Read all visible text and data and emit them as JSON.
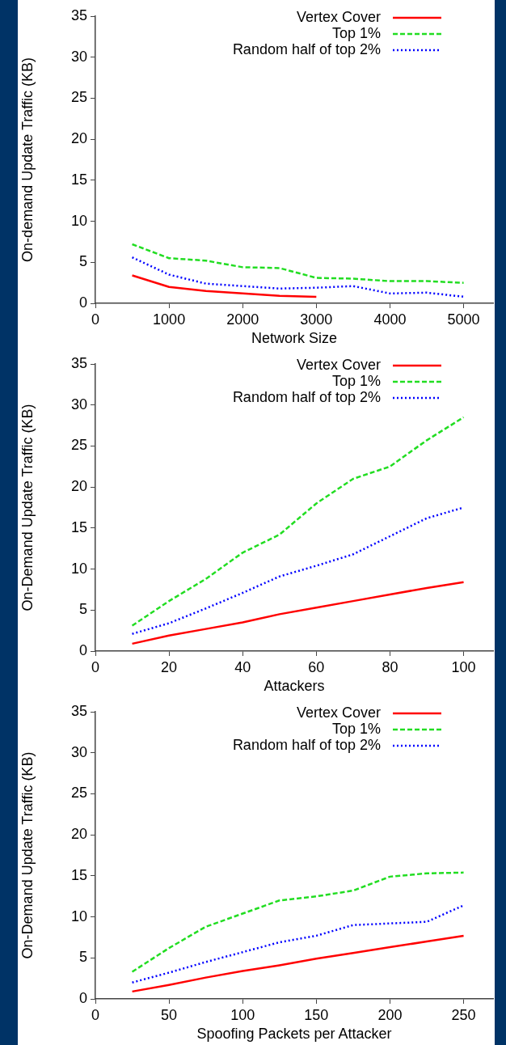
{
  "chart_data": [
    {
      "type": "line",
      "xlabel": "Network Size",
      "ylabel": "On-demand Update Traffic (KB)",
      "legend": "top right",
      "x": [
        500,
        1000,
        1500,
        2000,
        2500,
        3000,
        3500,
        4000,
        4500,
        5000
      ],
      "xlim": [
        0,
        5400
      ],
      "xticks": [
        0,
        1000,
        2000,
        3000,
        4000,
        5000
      ],
      "ylim": [
        0,
        35
      ],
      "yticks": [
        0,
        5,
        10,
        15,
        20,
        25,
        30,
        35
      ],
      "series": [
        {
          "name": "Vertex Cover",
          "color": "#ff0000",
          "line_style": "solid",
          "values": [
            3.4,
            2.0,
            1.5,
            1.2,
            0.9,
            0.8,
            null,
            null,
            null,
            null
          ]
        },
        {
          "name": "Top 1%",
          "color": "#22dd22",
          "line_style": "dashed",
          "values": [
            7.2,
            5.5,
            5.2,
            4.4,
            4.3,
            3.1,
            3.0,
            2.7,
            2.7,
            2.5
          ]
        },
        {
          "name": "Random half of top 2%",
          "color": "#0000ff",
          "line_style": "dotted",
          "values": [
            5.6,
            3.5,
            2.4,
            2.1,
            1.8,
            1.9,
            2.1,
            1.2,
            1.3,
            0.8
          ]
        }
      ]
    },
    {
      "type": "line",
      "xlabel": "Attackers",
      "ylabel": "On-Demand Update Traffic (KB)",
      "legend": "top right",
      "x": [
        10,
        20,
        30,
        40,
        50,
        60,
        70,
        80,
        90,
        100
      ],
      "xlim": [
        0,
        108
      ],
      "xticks": [
        0,
        20,
        40,
        60,
        80,
        100
      ],
      "ylim": [
        0,
        35
      ],
      "yticks": [
        0,
        5,
        10,
        15,
        20,
        25,
        30,
        35
      ],
      "series": [
        {
          "name": "Vertex Cover",
          "color": "#ff0000",
          "line_style": "solid",
          "values": [
            0.9,
            1.9,
            2.7,
            3.5,
            4.5,
            5.3,
            6.1,
            6.9,
            7.7,
            8.4
          ]
        },
        {
          "name": "Top 1%",
          "color": "#22dd22",
          "line_style": "dashed",
          "values": [
            3.1,
            6.1,
            8.8,
            12.0,
            14.2,
            18.0,
            21.0,
            22.5,
            25.7,
            28.5
          ]
        },
        {
          "name": "Random half of top 2%",
          "color": "#0000ff",
          "line_style": "dotted",
          "values": [
            2.1,
            3.4,
            5.2,
            7.1,
            9.1,
            10.4,
            11.8,
            14.0,
            16.2,
            17.5
          ]
        }
      ]
    },
    {
      "type": "line",
      "xlabel": "Spoofing Packets per Attacker",
      "ylabel": "On-Demand Update Traffic (KB)",
      "legend": "top right",
      "x": [
        25,
        50,
        75,
        100,
        125,
        150,
        175,
        200,
        225,
        250
      ],
      "xlim": [
        0,
        270
      ],
      "xticks": [
        0,
        50,
        100,
        150,
        200,
        250
      ],
      "ylim": [
        0,
        35
      ],
      "yticks": [
        0,
        5,
        10,
        15,
        20,
        25,
        30,
        35
      ],
      "series": [
        {
          "name": "Vertex Cover",
          "color": "#ff0000",
          "line_style": "solid",
          "values": [
            0.9,
            1.7,
            2.6,
            3.4,
            4.1,
            4.9,
            5.6,
            6.3,
            7.0,
            7.7
          ]
        },
        {
          "name": "Top 1%",
          "color": "#22dd22",
          "line_style": "dashed",
          "values": [
            3.3,
            6.2,
            8.8,
            10.4,
            12.0,
            12.5,
            13.2,
            14.9,
            15.3,
            15.4
          ]
        },
        {
          "name": "Random half of top 2%",
          "color": "#0000ff",
          "line_style": "dotted",
          "values": [
            2.0,
            3.2,
            4.5,
            5.7,
            6.9,
            7.7,
            9.0,
            9.2,
            9.4,
            11.4
          ]
        }
      ]
    }
  ]
}
